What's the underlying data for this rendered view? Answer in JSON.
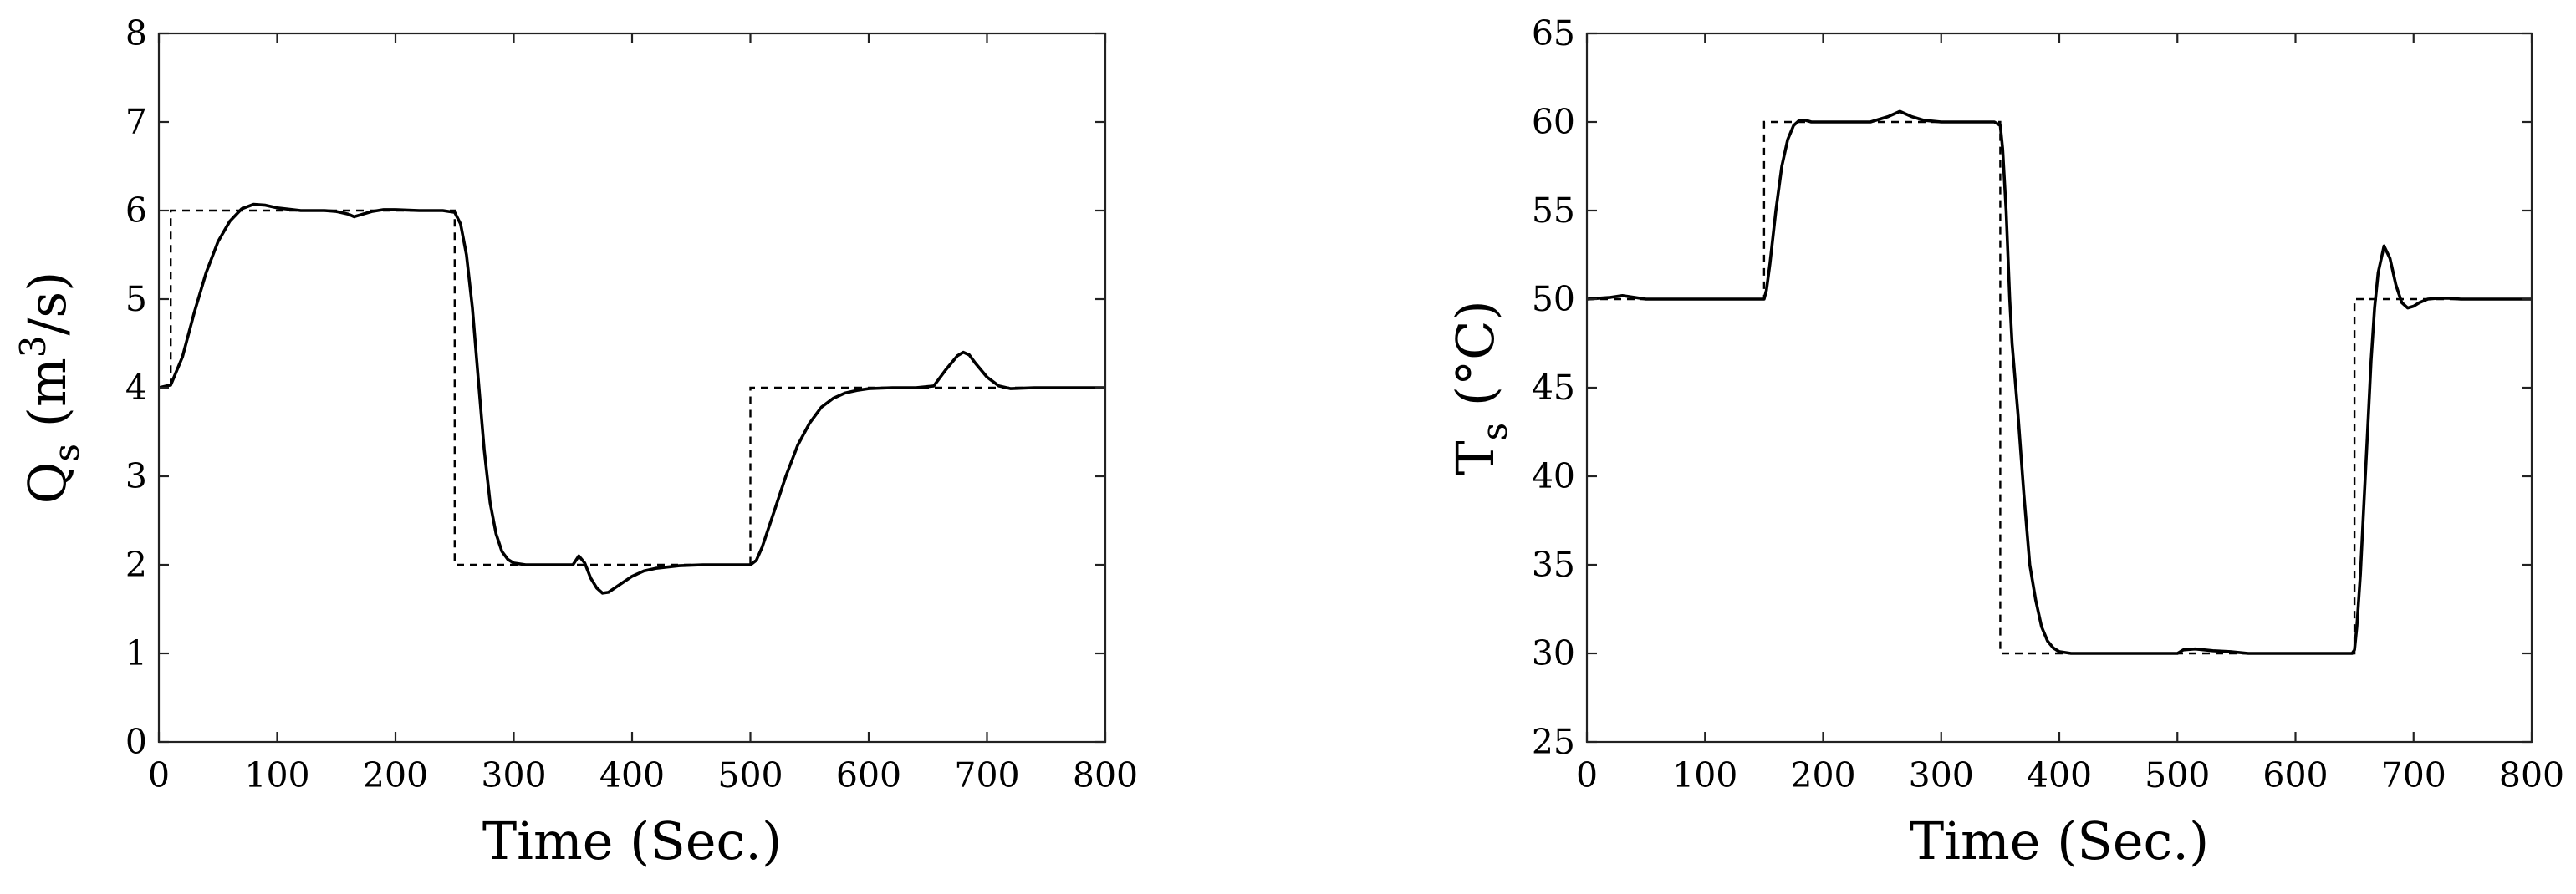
{
  "chart_data": [
    {
      "type": "line",
      "xlabel": "Time (Sec.)",
      "ylabel": {
        "main": "Q",
        "sub": "s",
        "unit_open": " (m",
        "sup": "3",
        "unit_close": "/s)"
      },
      "xlim": [
        0,
        800
      ],
      "ylim": [
        0,
        8
      ],
      "xticks": [
        0,
        100,
        200,
        300,
        400,
        500,
        600,
        700,
        800
      ],
      "yticks": [
        0,
        1,
        2,
        3,
        4,
        5,
        6,
        7,
        8
      ],
      "grid": false,
      "series": [
        {
          "style": "dashed",
          "x": [
            0,
            10,
            10,
            250,
            250,
            500,
            500,
            800
          ],
          "y": [
            4,
            4,
            6,
            6,
            2,
            2,
            4,
            4
          ]
        },
        {
          "style": "solid",
          "x": [
            0,
            10,
            20,
            30,
            40,
            50,
            60,
            70,
            80,
            90,
            100,
            120,
            140,
            150,
            160,
            165,
            170,
            180,
            190,
            200,
            220,
            240,
            250,
            255,
            260,
            265,
            270,
            275,
            280,
            285,
            290,
            295,
            300,
            310,
            320,
            330,
            340,
            350,
            355,
            360,
            365,
            370,
            375,
            380,
            390,
            400,
            410,
            420,
            440,
            460,
            480,
            500,
            505,
            510,
            520,
            530,
            540,
            550,
            560,
            570,
            580,
            590,
            600,
            620,
            640,
            655,
            665,
            675,
            680,
            685,
            690,
            700,
            710,
            720,
            740,
            760,
            800
          ],
          "y": [
            4.0,
            4.03,
            4.35,
            4.85,
            5.3,
            5.65,
            5.88,
            6.02,
            6.07,
            6.06,
            6.03,
            6.0,
            6.0,
            5.99,
            5.96,
            5.93,
            5.95,
            5.99,
            6.01,
            6.01,
            6.0,
            6.0,
            5.98,
            5.85,
            5.5,
            4.9,
            4.1,
            3.3,
            2.7,
            2.35,
            2.15,
            2.06,
            2.02,
            2.0,
            2.0,
            2.0,
            2.0,
            2.0,
            2.1,
            2.02,
            1.85,
            1.74,
            1.68,
            1.69,
            1.78,
            1.87,
            1.93,
            1.96,
            1.99,
            2.0,
            2.0,
            2.0,
            2.05,
            2.2,
            2.6,
            3.0,
            3.35,
            3.6,
            3.78,
            3.88,
            3.94,
            3.97,
            3.99,
            4.0,
            4.0,
            4.02,
            4.2,
            4.36,
            4.4,
            4.37,
            4.28,
            4.12,
            4.02,
            3.99,
            4.0,
            4.0,
            4.0
          ]
        }
      ]
    },
    {
      "type": "line",
      "xlabel": "Time (Sec.)",
      "ylabel": {
        "main": "T",
        "sub": "s",
        "unit_open": " (°C)",
        "sup": "",
        "unit_close": ""
      },
      "xlim": [
        0,
        800
      ],
      "ylim": [
        25,
        65
      ],
      "xticks": [
        0,
        100,
        200,
        300,
        400,
        500,
        600,
        700,
        800
      ],
      "yticks": [
        25,
        30,
        35,
        40,
        45,
        50,
        55,
        60,
        65
      ],
      "grid": false,
      "series": [
        {
          "style": "dashed",
          "x": [
            0,
            150,
            150,
            350,
            350,
            650,
            650,
            800
          ],
          "y": [
            50,
            50,
            60,
            60,
            30,
            30,
            50,
            50
          ]
        },
        {
          "style": "solid",
          "x": [
            0,
            20,
            30,
            40,
            50,
            100,
            150,
            152,
            155,
            160,
            165,
            170,
            175,
            180,
            185,
            190,
            200,
            240,
            255,
            265,
            275,
            285,
            300,
            345,
            350,
            352,
            355,
            358,
            360,
            365,
            370,
            375,
            380,
            385,
            390,
            395,
            400,
            410,
            420,
            450,
            500,
            505,
            515,
            530,
            545,
            560,
            600,
            648,
            650,
            652,
            655,
            658,
            661,
            664,
            667,
            670,
            675,
            680,
            685,
            690,
            695,
            700,
            705,
            712,
            720,
            730,
            740,
            760,
            800
          ],
          "y": [
            50,
            50.1,
            50.2,
            50.1,
            50.0,
            50.0,
            50.0,
            50.5,
            52.0,
            55.0,
            57.5,
            59.0,
            59.8,
            60.1,
            60.1,
            60.0,
            60.0,
            60.0,
            60.3,
            60.6,
            60.3,
            60.1,
            60.0,
            60.0,
            59.8,
            58.5,
            55.0,
            50.0,
            47.5,
            43.5,
            39.0,
            35.0,
            33.0,
            31.5,
            30.7,
            30.3,
            30.1,
            30.0,
            30.0,
            30.0,
            30.0,
            30.2,
            30.25,
            30.15,
            30.1,
            30.0,
            30.0,
            30.0,
            30.2,
            31.5,
            34.5,
            38.5,
            42.5,
            46.5,
            49.5,
            51.5,
            53.0,
            52.3,
            50.8,
            49.8,
            49.5,
            49.6,
            49.8,
            50.0,
            50.05,
            50.05,
            50.0,
            50.0,
            50.0
          ]
        }
      ]
    }
  ]
}
